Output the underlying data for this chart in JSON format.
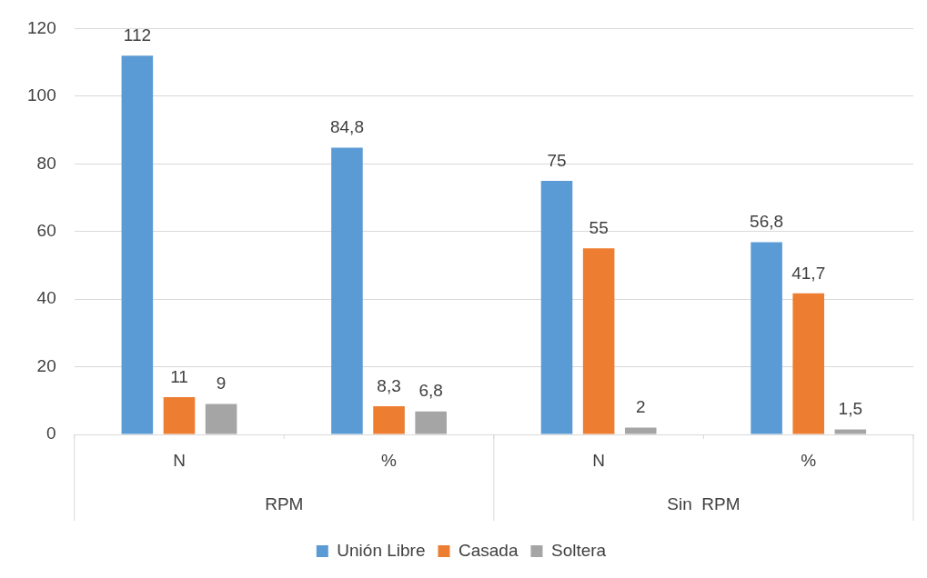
{
  "chart_data": {
    "type": "bar",
    "categories": [
      "N",
      "%",
      "N",
      "%"
    ],
    "annotations": [
      "RPM",
      "Sin  RPM"
    ],
    "series": [
      {
        "name": "Unión Libre",
        "color": "#5b9bd5",
        "values": [
          112,
          84.8,
          75,
          56.8
        ],
        "value_labels": [
          "112",
          "84,8",
          "75",
          "56,8"
        ]
      },
      {
        "name": "Casada",
        "color": "#ed7d31",
        "values": [
          11,
          8.3,
          55,
          41.7
        ],
        "value_labels": [
          "11",
          "8,3",
          "55",
          "41,7"
        ]
      },
      {
        "name": "Soltera",
        "color": "#a5a5a5",
        "values": [
          9,
          6.8,
          2,
          1.5
        ],
        "value_labels": [
          "9",
          "6,8",
          "2",
          "1,5"
        ]
      }
    ],
    "ylim": [
      0,
      120
    ],
    "yticks": [
      0,
      20,
      40,
      60,
      80,
      100,
      120
    ],
    "grid": "y",
    "legend": "bottom"
  }
}
